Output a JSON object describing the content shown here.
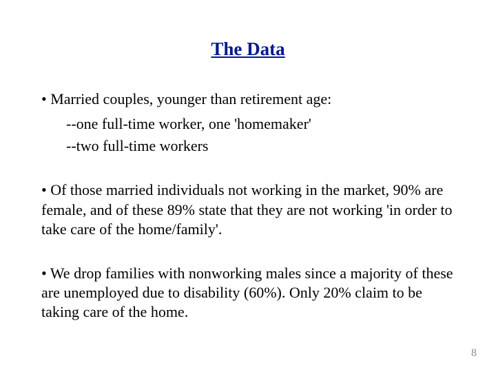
{
  "title": {
    "text": "The Data",
    "color": "#001a8f"
  },
  "bullets": {
    "b1": "•  Married couples, younger than retirement age:",
    "b1_sub1": "--one full-time worker, one 'homemaker'",
    "b1_sub2": "--two full-time workers",
    "b2": "•  Of those married individuals not working in the market, 90% are female, and of these 89% state that they are not working  'in order to take care of the home/family'.",
    "b3": "•  We drop families with nonworking males since a majority of these are unemployed due to disability (60%). Only 20% claim to be taking care of the home."
  },
  "page_number": "8",
  "colors": {
    "title": "#001a8f",
    "body": "#000000",
    "pagenum": "#8c8c8c",
    "background": "#ffffff"
  },
  "fonts": {
    "family": "Times New Roman",
    "title_size_pt": 20,
    "body_size_pt": 16
  }
}
